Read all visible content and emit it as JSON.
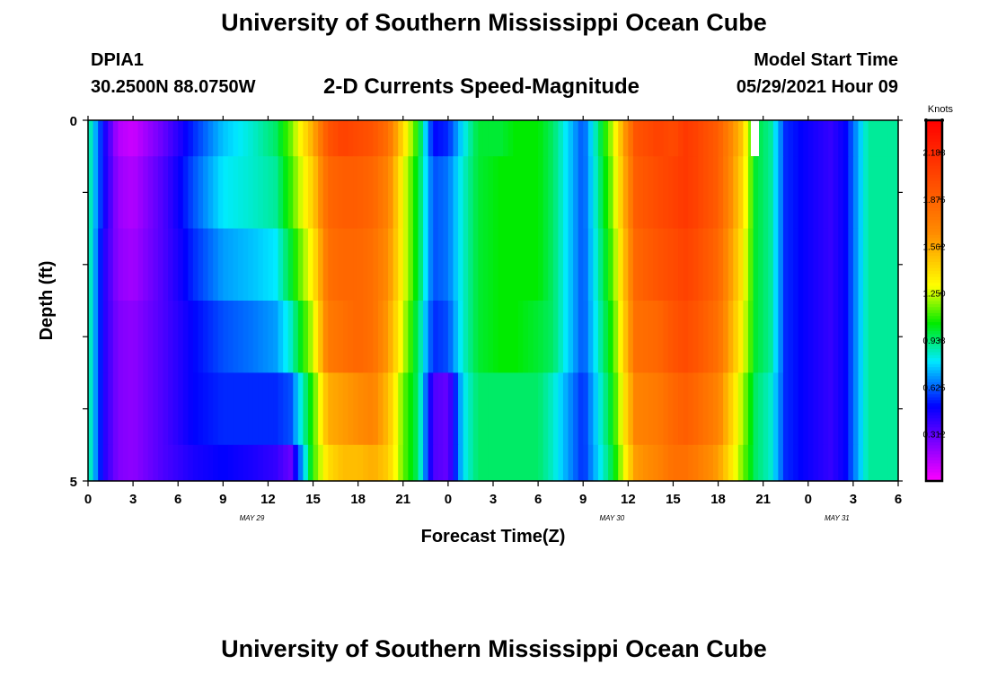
{
  "header": {
    "title": "University of Southern Mississippi Ocean Cube",
    "station": "DPIA1",
    "coords": "30.2500N  88.0750W",
    "plot_title": "2-D Currents Speed-Magnitude",
    "model_start_label": "Model Start Time",
    "model_start_value": "05/29/2021 Hour 09"
  },
  "footer": {
    "title": "University of Southern Mississippi Ocean Cube"
  },
  "chart_data": {
    "type": "heatmap",
    "title": "2-D Currents Speed-Magnitude",
    "xlabel": "Forecast Time(Z)",
    "ylabel": "Depth (ft)",
    "x_tick_labels": [
      "0",
      "3",
      "6",
      "9",
      "12",
      "15",
      "18",
      "21",
      "0",
      "3",
      "6",
      "9",
      "12",
      "15",
      "18",
      "21",
      "0",
      "3",
      "6"
    ],
    "date_labels": [
      {
        "text": "MAY 29",
        "hour": 12
      },
      {
        "text": "MAY 30",
        "hour": 36
      },
      {
        "text": "MAY 31",
        "hour": 51
      }
    ],
    "x_range_hours": [
      0,
      54
    ],
    "y_tick_labels": [
      "0",
      "5"
    ],
    "ylim": [
      0,
      5
    ],
    "colorbar": {
      "unit": "Knots",
      "tick_labels": [
        "2.188",
        "1.875",
        "1.562",
        "1.250",
        "0.938",
        "0.625",
        "0.312"
      ],
      "range": [
        0,
        2.4
      ]
    },
    "depth_bands": [
      "0-0.5",
      "0.5-1.5",
      "1.5-2.5",
      "2.5-3.5",
      "3.5-4.5",
      "4.5-5"
    ],
    "timeline_keyframes_hours": [
      0,
      1,
      2,
      3,
      5,
      7,
      9,
      11,
      12.5,
      13.5,
      15,
      16,
      17,
      18,
      19,
      20,
      21,
      22,
      23,
      24,
      25,
      26,
      27.5,
      28.5,
      30,
      31,
      33,
      35,
      36.5,
      38,
      39,
      39.8,
      40.5,
      42,
      43.5,
      44.5,
      45.5,
      46.5,
      47.5,
      48.5,
      49.5,
      50.5,
      52,
      54
    ],
    "speed_knots_by_band": [
      [
        0.94,
        0.5,
        0.15,
        0.1,
        0.3,
        0.55,
        0.75,
        0.85,
        0.95,
        1.15,
        1.55,
        1.95,
        2.05,
        2.0,
        1.95,
        1.8,
        1.4,
        1.05,
        0.5,
        0.55,
        0.8,
        1.0,
        1.0,
        1.05,
        1.05,
        0.95,
        0.6,
        1.25,
        1.95,
        2.05,
        2.0,
        2.1,
        2.05,
        1.9,
        1.5,
        1.0,
        0.9,
        0.55,
        0.5,
        0.45,
        0.4,
        0.5,
        0.9,
        0.9
      ],
      [
        0.94,
        0.5,
        0.2,
        0.15,
        0.35,
        0.6,
        0.8,
        0.85,
        0.9,
        1.1,
        1.45,
        1.85,
        1.9,
        1.9,
        1.85,
        1.7,
        1.3,
        1.0,
        0.6,
        0.65,
        0.85,
        1.0,
        1.05,
        1.05,
        1.05,
        0.95,
        0.6,
        1.2,
        1.9,
        2.0,
        2.05,
        2.1,
        2.05,
        1.9,
        1.45,
        1.0,
        0.9,
        0.55,
        0.5,
        0.45,
        0.4,
        0.5,
        0.9,
        0.9
      ],
      [
        0.94,
        0.45,
        0.22,
        0.18,
        0.35,
        0.55,
        0.7,
        0.75,
        0.8,
        1.0,
        1.35,
        1.8,
        1.85,
        1.85,
        1.8,
        1.65,
        1.3,
        1.0,
        0.6,
        0.65,
        0.85,
        1.0,
        1.05,
        1.05,
        1.05,
        0.95,
        0.6,
        1.15,
        1.85,
        1.95,
        2.0,
        2.05,
        2.0,
        1.85,
        1.4,
        1.0,
        0.9,
        0.55,
        0.5,
        0.45,
        0.4,
        0.5,
        0.9,
        0.9
      ],
      [
        0.94,
        0.45,
        0.25,
        0.22,
        0.35,
        0.5,
        0.6,
        0.65,
        0.7,
        0.85,
        1.25,
        1.75,
        1.8,
        1.85,
        1.8,
        1.6,
        1.25,
        0.95,
        0.55,
        0.6,
        0.85,
        1.0,
        1.05,
        1.05,
        1.0,
        0.95,
        0.6,
        1.1,
        1.8,
        1.85,
        1.95,
        2.0,
        1.95,
        1.8,
        1.35,
        1.0,
        0.9,
        0.55,
        0.5,
        0.45,
        0.4,
        0.5,
        0.9,
        0.9
      ],
      [
        0.94,
        0.45,
        0.25,
        0.22,
        0.35,
        0.5,
        0.55,
        0.55,
        0.55,
        0.6,
        1.1,
        1.55,
        1.6,
        1.65,
        1.7,
        1.5,
        1.15,
        0.95,
        0.35,
        0.3,
        0.8,
        0.95,
        0.95,
        0.95,
        0.95,
        0.85,
        0.55,
        1.05,
        1.7,
        1.75,
        1.85,
        1.9,
        1.85,
        1.7,
        1.25,
        0.95,
        0.85,
        0.55,
        0.5,
        0.45,
        0.4,
        0.5,
        0.9,
        0.9
      ],
      [
        0.94,
        0.45,
        0.25,
        0.22,
        0.35,
        0.45,
        0.5,
        0.45,
        0.4,
        0.3,
        1.1,
        1.4,
        1.5,
        1.5,
        1.55,
        1.45,
        1.15,
        0.95,
        0.35,
        0.3,
        0.8,
        0.95,
        0.95,
        0.95,
        0.95,
        0.85,
        0.55,
        1.0,
        1.6,
        1.7,
        1.8,
        1.8,
        1.75,
        1.6,
        1.2,
        0.95,
        0.85,
        0.55,
        0.5,
        0.45,
        0.4,
        0.5,
        0.9,
        0.9
      ]
    ]
  }
}
